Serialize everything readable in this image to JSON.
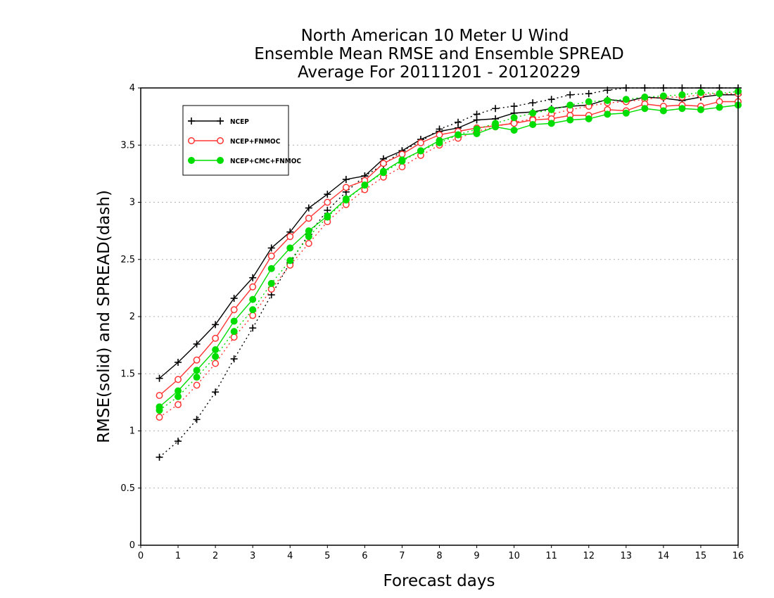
{
  "chart_data": {
    "type": "line",
    "title": [
      "North American 10 Meter U Wind",
      "Ensemble Mean RMSE and Ensemble SPREAD",
      "Average For 20111201 - 20120229"
    ],
    "xlabel": "Forecast days",
    "ylabel": "RMSE(solid)  and  SPREAD(dash)",
    "xlim": [
      0,
      16
    ],
    "ylim": [
      0,
      4
    ],
    "xticks": [
      "0",
      "1",
      "2",
      "3",
      "4",
      "5",
      "6",
      "7",
      "8",
      "9",
      "10",
      "11",
      "12",
      "13",
      "14",
      "15",
      "16"
    ],
    "yticks": [
      "0",
      "0.5",
      "1",
      "1.5",
      "2",
      "2.5",
      "3",
      "3.5",
      "4"
    ],
    "grid": "horizontal dotted",
    "legend_position": "top-left",
    "x": [
      0.5,
      1,
      1.5,
      2,
      2.5,
      3,
      3.5,
      4,
      4.5,
      5,
      5.5,
      6,
      6.5,
      7,
      7.5,
      8,
      8.5,
      9,
      9.5,
      10,
      10.5,
      11,
      11.5,
      12,
      12.5,
      13,
      13.5,
      14,
      14.5,
      15,
      15.5,
      16
    ],
    "series": [
      {
        "name": "NCEP",
        "color": "#000000",
        "marker": "plus",
        "rmse": [
          1.46,
          1.6,
          1.76,
          1.93,
          2.16,
          2.34,
          2.6,
          2.74,
          2.95,
          3.07,
          3.2,
          3.23,
          3.38,
          3.45,
          3.55,
          3.62,
          3.65,
          3.72,
          3.73,
          3.78,
          3.79,
          3.82,
          3.84,
          3.85,
          3.9,
          3.88,
          3.92,
          3.91,
          3.89,
          3.92,
          3.94,
          3.94
        ],
        "spread": [
          0.77,
          0.91,
          1.1,
          1.34,
          1.63,
          1.9,
          2.19,
          2.47,
          2.72,
          2.93,
          3.09,
          3.23,
          3.33,
          3.45,
          3.53,
          3.64,
          3.7,
          3.77,
          3.82,
          3.84,
          3.87,
          3.9,
          3.94,
          3.95,
          3.98,
          4.0,
          4.0,
          4.0,
          4.0,
          4.0,
          4.0,
          4.0
        ]
      },
      {
        "name": "NCEP+FNMOC",
        "color": "#ff3333",
        "marker": "open-circle",
        "rmse": [
          1.31,
          1.45,
          1.62,
          1.81,
          2.06,
          2.26,
          2.53,
          2.7,
          2.86,
          3.0,
          3.13,
          3.19,
          3.34,
          3.42,
          3.52,
          3.59,
          3.62,
          3.65,
          3.67,
          3.69,
          3.72,
          3.73,
          3.76,
          3.76,
          3.81,
          3.8,
          3.86,
          3.84,
          3.85,
          3.84,
          3.88,
          3.88
        ],
        "spread": [
          1.12,
          1.23,
          1.4,
          1.59,
          1.82,
          2.01,
          2.24,
          2.45,
          2.64,
          2.83,
          2.98,
          3.11,
          3.22,
          3.31,
          3.41,
          3.5,
          3.56,
          3.62,
          3.66,
          3.7,
          3.73,
          3.77,
          3.81,
          3.84,
          3.87,
          3.88,
          3.9,
          3.92,
          3.92,
          3.94,
          3.95,
          3.95
        ]
      },
      {
        "name": "NCEP+CMC+FNMOC",
        "color": "#00dd00",
        "marker": "filled-circle",
        "rmse": [
          1.21,
          1.35,
          1.53,
          1.71,
          1.96,
          2.15,
          2.42,
          2.6,
          2.75,
          2.88,
          3.03,
          3.15,
          3.27,
          3.37,
          3.45,
          3.54,
          3.59,
          3.6,
          3.66,
          3.63,
          3.68,
          3.69,
          3.72,
          3.73,
          3.77,
          3.78,
          3.82,
          3.8,
          3.82,
          3.81,
          3.83,
          3.85
        ],
        "spread": [
          1.18,
          1.3,
          1.47,
          1.65,
          1.87,
          2.06,
          2.29,
          2.49,
          2.7,
          2.87,
          3.02,
          3.15,
          3.26,
          3.36,
          3.45,
          3.52,
          3.59,
          3.64,
          3.69,
          3.74,
          3.78,
          3.81,
          3.85,
          3.88,
          3.89,
          3.9,
          3.92,
          3.93,
          3.94,
          3.96,
          3.95,
          3.97
        ]
      }
    ]
  },
  "colors": {
    "axis": "#000000",
    "grid": "#b0b0b0",
    "background": "#ffffff"
  }
}
